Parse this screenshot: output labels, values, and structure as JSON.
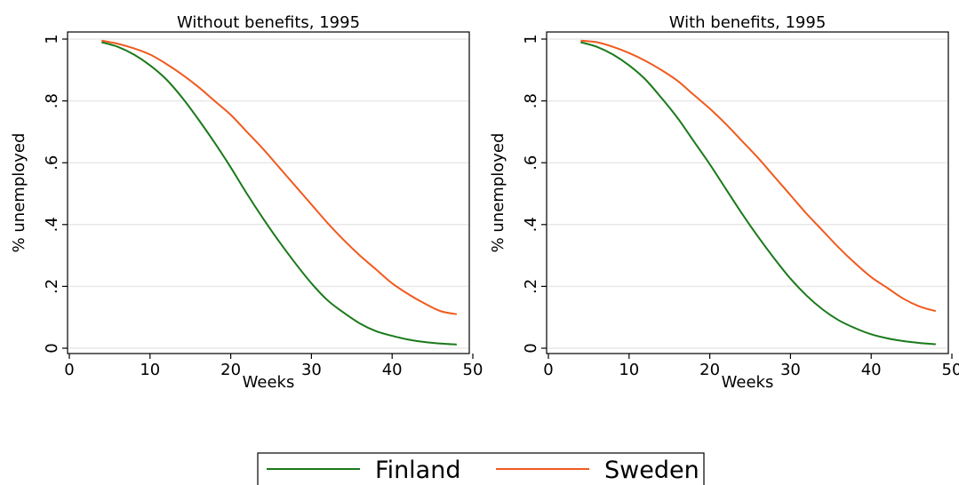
{
  "chart_data": [
    {
      "type": "line",
      "title": "Without benefits, 1995",
      "xlabel": "Weeks",
      "ylabel": "% unemployed",
      "xlim": [
        0,
        50
      ],
      "ylim": [
        0,
        1
      ],
      "xticks": [
        0,
        10,
        20,
        30,
        40,
        50
      ],
      "xtick_labels": [
        "0",
        "10",
        "20",
        "30",
        "40",
        "50"
      ],
      "yticks": [
        0,
        0.2,
        0.4,
        0.6,
        0.8,
        1
      ],
      "ytick_labels": [
        "0",
        ".2",
        ".4",
        ".6",
        ".8",
        "1"
      ],
      "grid": true,
      "series": [
        {
          "name": "Finland",
          "x": [
            4,
            6,
            8,
            10,
            12,
            14,
            16,
            18,
            20,
            22,
            24,
            26,
            28,
            30,
            32,
            34,
            36,
            38,
            40,
            42,
            44,
            46,
            48
          ],
          "y": [
            0.99,
            0.975,
            0.95,
            0.915,
            0.87,
            0.81,
            0.74,
            0.665,
            0.585,
            0.5,
            0.42,
            0.345,
            0.275,
            0.21,
            0.155,
            0.115,
            0.08,
            0.055,
            0.04,
            0.028,
            0.02,
            0.015,
            0.012
          ]
        },
        {
          "name": "Sweden",
          "x": [
            4,
            6,
            8,
            10,
            12,
            14,
            16,
            18,
            20,
            22,
            24,
            26,
            28,
            30,
            32,
            34,
            36,
            38,
            40,
            42,
            44,
            46,
            48
          ],
          "y": [
            0.995,
            0.985,
            0.97,
            0.95,
            0.92,
            0.885,
            0.845,
            0.8,
            0.755,
            0.7,
            0.645,
            0.585,
            0.525,
            0.465,
            0.405,
            0.35,
            0.3,
            0.255,
            0.21,
            0.175,
            0.145,
            0.12,
            0.11
          ]
        }
      ]
    },
    {
      "type": "line",
      "title": "With benefits, 1995",
      "xlabel": "Weeks",
      "ylabel": "% unemployed",
      "xlim": [
        0,
        50
      ],
      "ylim": [
        0,
        1
      ],
      "xticks": [
        0,
        10,
        20,
        30,
        40,
        50
      ],
      "xtick_labels": [
        "0",
        "10",
        "20",
        "30",
        "40",
        "50"
      ],
      "yticks": [
        0,
        0.2,
        0.4,
        0.6,
        0.8,
        1
      ],
      "ytick_labels": [
        "0",
        ".2",
        ".4",
        ".6",
        ".8",
        "1"
      ],
      "grid": true,
      "series": [
        {
          "name": "Finland",
          "x": [
            4,
            6,
            8,
            10,
            12,
            14,
            16,
            18,
            20,
            22,
            24,
            26,
            28,
            30,
            32,
            34,
            36,
            38,
            40,
            42,
            44,
            46,
            48
          ],
          "y": [
            0.99,
            0.975,
            0.95,
            0.915,
            0.87,
            0.81,
            0.745,
            0.67,
            0.595,
            0.515,
            0.435,
            0.36,
            0.29,
            0.225,
            0.17,
            0.125,
            0.09,
            0.065,
            0.045,
            0.032,
            0.023,
            0.017,
            0.013
          ]
        },
        {
          "name": "Sweden",
          "x": [
            4,
            6,
            8,
            10,
            12,
            14,
            16,
            18,
            20,
            22,
            24,
            26,
            28,
            30,
            32,
            34,
            36,
            38,
            40,
            42,
            44,
            46,
            48
          ],
          "y": [
            0.995,
            0.99,
            0.975,
            0.955,
            0.93,
            0.9,
            0.865,
            0.82,
            0.775,
            0.725,
            0.67,
            0.615,
            0.555,
            0.495,
            0.435,
            0.38,
            0.325,
            0.275,
            0.23,
            0.195,
            0.16,
            0.135,
            0.12
          ]
        }
      ]
    }
  ],
  "legend": {
    "placement": "bottom",
    "entries": [
      {
        "label": "Finland",
        "color": "#1a7a1a"
      },
      {
        "label": "Sweden",
        "color": "#f05a1e"
      }
    ]
  },
  "colors": {
    "grid": "#e8e8e8",
    "frame": "#000000",
    "background": "#ffffff"
  }
}
